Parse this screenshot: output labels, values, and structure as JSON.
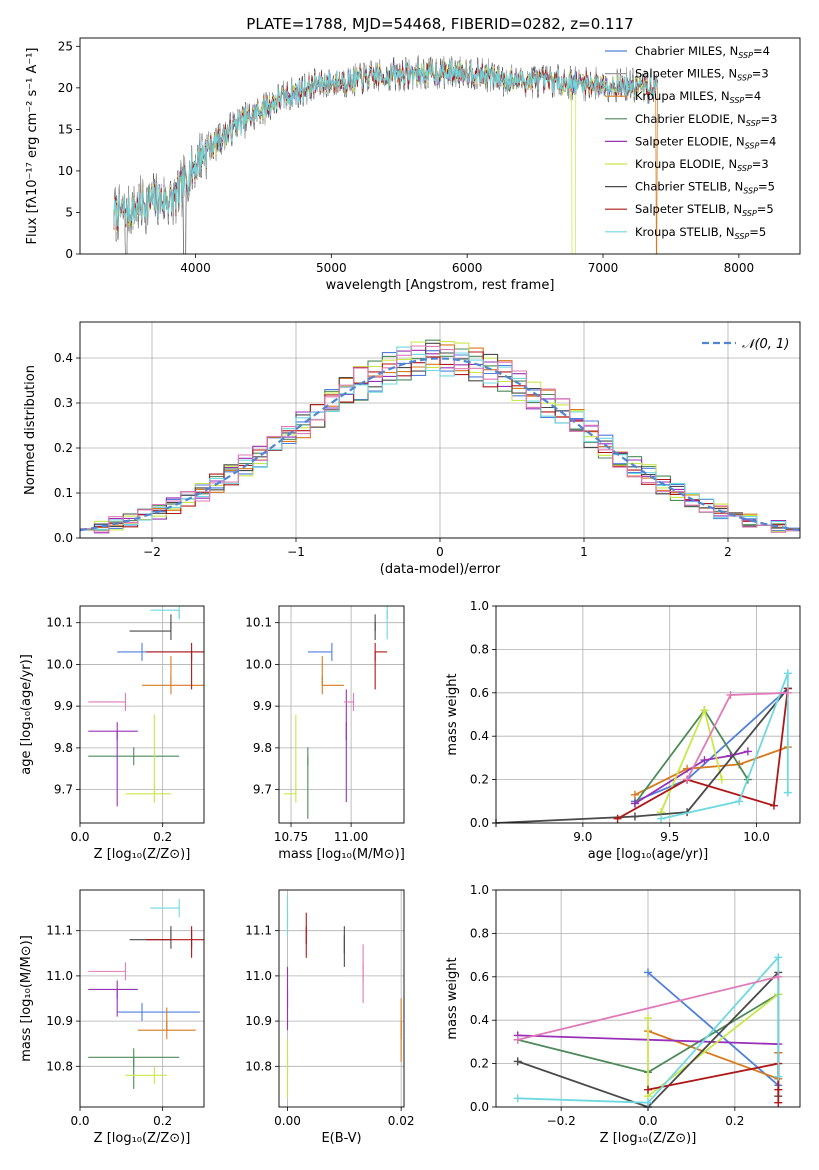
{
  "figure_title": "PLATE=1788, MJD=54468, FIBERID=0282, z=0.117",
  "colors": {
    "Chabrier MILES": "#4f7fdc",
    "Salpeter MILES": "#9a9a9a",
    "Kroupa MILES": "#d87a1e",
    "Chabrier ELODIE": "#4e8a5a",
    "Salpeter ELODIE": "#9a30b8",
    "Kroupa ELODIE": "#c8e84a",
    "Chabrier STELIB": "#4a4a4a",
    "Salpeter STELIB": "#b01818",
    "Kroupa STELIB": "#6fd8e0",
    "pink": "#e07ab8",
    "dashed_normal": "#4f86d4"
  },
  "chart_data": [
    {
      "id": "spectrum",
      "type": "line",
      "title": "PLATE=1788, MJD=54468, FIBERID=0282, z=0.117",
      "xlabel": "wavelength [Angstrom, rest frame]",
      "ylabel": "Flux [fλ10⁻¹⁷ erg cm⁻² s⁻¹ A⁻¹]",
      "xlim": [
        3150,
        8450
      ],
      "ylim": [
        0,
        26
      ],
      "xticks": [
        4000,
        5000,
        6000,
        7000,
        8000
      ],
      "yticks": [
        0,
        5,
        10,
        15,
        20,
        25
      ],
      "grid": false,
      "legend_position": "right",
      "legend": [
        {
          "label": "Chabrier MILES, N",
          "sub": "SSP",
          "n": "=4"
        },
        {
          "label": "Salpeter MILES, N",
          "sub": "SSP",
          "n": "=3"
        },
        {
          "label": "Kroupa MILES, N",
          "sub": "SSP",
          "n": "=4"
        },
        {
          "label": "Chabrier ELODIE, N",
          "sub": "SSP",
          "n": "=3"
        },
        {
          "label": "Salpeter ELODIE, N",
          "sub": "SSP",
          "n": "=4"
        },
        {
          "label": "Kroupa ELODIE, N",
          "sub": "SSP",
          "n": "=3"
        },
        {
          "label": "Chabrier STELIB, N",
          "sub": "SSP",
          "n": "=5"
        },
        {
          "label": "Salpeter STELIB, N",
          "sub": "SSP",
          "n": "=5"
        },
        {
          "label": "Kroupa STELIB, N",
          "sub": "SSP",
          "n": "=5"
        }
      ],
      "continuum": {
        "x": [
          3400,
          3500,
          3700,
          3850,
          3950,
          4050,
          4300,
          4600,
          4900,
          5200,
          5400,
          5700,
          6000,
          6300,
          6600,
          6900,
          7200,
          7400
        ],
        "y": [
          4.8,
          5.2,
          6.5,
          6.5,
          9.5,
          12.0,
          15.5,
          18.5,
          20.5,
          21.0,
          21.5,
          21.8,
          22.0,
          21.0,
          20.8,
          20.5,
          20.2,
          20.0
        ]
      },
      "series_extent": {
        "x_min": 3400,
        "x_max": 7400
      }
    },
    {
      "id": "residuals",
      "type": "step",
      "xlabel": "(data-model)/error",
      "ylabel": "Normed distribution",
      "xlim": [
        -2.5,
        2.5
      ],
      "ylim": [
        0,
        0.48
      ],
      "xticks": [
        -2,
        -1,
        0,
        1,
        2
      ],
      "yticks": [
        0.0,
        0.1,
        0.2,
        0.3,
        0.4
      ],
      "grid": true,
      "legend_position": "top-right",
      "legend_label": "𝒩(0, 1)",
      "bin_width": 0.1
    },
    {
      "id": "age_vs_Z",
      "type": "errorbar",
      "xlabel": "Z [log₁₀(Z/Z⊙)]",
      "ylabel": "age [log₁₀(age/yr)]",
      "xlim": [
        0.0,
        0.3
      ],
      "ylim": [
        9.62,
        10.14
      ],
      "xticks": [
        0.0,
        0.2
      ],
      "yticks": [
        9.7,
        9.8,
        9.9,
        10.0,
        10.1
      ],
      "points": [
        {
          "color": "Chabrier MILES",
          "x": 0.15,
          "xerr": [
            0.06,
            0.15
          ],
          "y": 10.03,
          "yerr": [
            0.0,
            0.0
          ]
        },
        {
          "color": "Kroupa MILES",
          "x": 0.22,
          "xerr": [
            0.07,
            0.08
          ],
          "y": 9.95,
          "yerr": [
            0.0,
            0.07
          ]
        },
        {
          "color": "Chabrier ELODIE",
          "x": 0.13,
          "xerr": [
            0.11,
            0.11
          ],
          "y": 9.78,
          "yerr": [
            0.0,
            0.0
          ]
        },
        {
          "color": "Salpeter ELODIE",
          "x": 0.09,
          "xerr": [
            0.07,
            0.05
          ],
          "y": 9.84,
          "yerr": [
            0.18,
            0.0
          ]
        },
        {
          "color": "Kroupa ELODIE",
          "x": 0.18,
          "xerr": [
            0.07,
            0.04
          ],
          "y": 9.69,
          "yerr": [
            0.0,
            0.19
          ]
        },
        {
          "color": "Chabrier STELIB",
          "x": 0.22,
          "xerr": [
            0.1,
            0.0
          ],
          "y": 10.08,
          "yerr": [
            0.0,
            0.04
          ]
        },
        {
          "color": "Salpeter STELIB",
          "x": 0.27,
          "xerr": [
            0.11,
            0.03
          ],
          "y": 10.03,
          "yerr": [
            0.09,
            0.0
          ]
        },
        {
          "color": "Kroupa STELIB",
          "x": 0.24,
          "xerr": [
            0.07,
            0.0
          ],
          "y": 10.13,
          "yerr": [
            0.02,
            0.0
          ]
        },
        {
          "color": "pink",
          "x": 0.11,
          "xerr": [
            0.09,
            0.0
          ],
          "y": 9.91,
          "yerr": [
            0.0,
            0.0
          ]
        }
      ]
    },
    {
      "id": "age_vs_mass",
      "type": "errorbar",
      "xlabel": "mass [log₁₀(M/M⊙)]",
      "ylabel": "",
      "xlim": [
        10.7,
        11.22
      ],
      "ylim": [
        9.62,
        10.14
      ],
      "xticks": [
        10.75,
        11.0
      ],
      "yticks": [
        9.7,
        9.8,
        9.9,
        10.0,
        10.1
      ],
      "points": [
        {
          "color": "Chabrier MILES",
          "x": 10.92,
          "xerr": [
            0.1,
            0.0
          ],
          "y": 10.03,
          "yerr": [
            0.0,
            0.0
          ]
        },
        {
          "color": "Kroupa MILES",
          "x": 10.88,
          "xerr": [
            0.0,
            0.09
          ],
          "y": 9.95,
          "yerr": [
            0.0,
            0.07
          ]
        },
        {
          "color": "Chabrier ELODIE",
          "x": 10.82,
          "xerr": [
            0.0,
            0.0
          ],
          "y": 9.78,
          "yerr": [
            0.15,
            0.0
          ]
        },
        {
          "color": "Salpeter ELODIE",
          "x": 10.98,
          "xerr": [
            0.0,
            0.0
          ],
          "y": 9.84,
          "yerr": [
            0.17,
            0.1
          ]
        },
        {
          "color": "Kroupa ELODIE",
          "x": 10.77,
          "xerr": [
            0.05,
            0.0
          ],
          "y": 9.69,
          "yerr": [
            0.0,
            0.19
          ]
        },
        {
          "color": "Chabrier STELIB",
          "x": 11.1,
          "xerr": [
            0.0,
            0.0
          ],
          "y": 10.08,
          "yerr": [
            0.0,
            0.04
          ]
        },
        {
          "color": "Salpeter STELIB",
          "x": 11.1,
          "xerr": [
            0.0,
            0.05
          ],
          "y": 10.03,
          "yerr": [
            0.09,
            0.0
          ]
        },
        {
          "color": "Kroupa STELIB",
          "x": 11.15,
          "xerr": [
            0.0,
            0.0
          ],
          "y": 10.13,
          "yerr": [
            0.07,
            0.0
          ]
        },
        {
          "color": "pink",
          "x": 11.01,
          "xerr": [
            0.04,
            0.0
          ],
          "y": 9.91,
          "yerr": [
            0.0,
            0.0
          ]
        }
      ]
    },
    {
      "id": "weight_vs_age",
      "type": "line",
      "xlabel": "age  [log₁₀(age/yr)]",
      "ylabel": "mass weight",
      "xlim": [
        8.5,
        10.25
      ],
      "ylim": [
        0.0,
        1.0
      ],
      "xticks": [
        9.0,
        9.5,
        10.0
      ],
      "yticks": [
        0.0,
        0.2,
        0.4,
        0.6,
        0.8,
        1.0
      ],
      "grid": true,
      "series": [
        {
          "color": "Chabrier MILES",
          "x": [
            9.3,
            9.6,
            10.18
          ],
          "y": [
            0.1,
            0.2,
            0.62
          ]
        },
        {
          "color": "Kroupa MILES",
          "x": [
            9.3,
            9.6,
            9.9,
            10.18
          ],
          "y": [
            0.13,
            0.25,
            0.27,
            0.35
          ]
        },
        {
          "color": "Chabrier ELODIE",
          "x": [
            9.3,
            9.7,
            9.95
          ],
          "y": [
            0.09,
            0.52,
            0.2
          ]
        },
        {
          "color": "Salpeter ELODIE",
          "x": [
            9.3,
            9.7,
            9.85,
            9.95
          ],
          "y": [
            0.09,
            0.29,
            0.31,
            0.33
          ]
        },
        {
          "color": "Kroupa ELODIE",
          "x": [
            9.45,
            9.7,
            9.8
          ],
          "y": [
            0.05,
            0.52,
            0.2
          ]
        },
        {
          "color": "Chabrier STELIB",
          "x": [
            8.5,
            9.3,
            9.6,
            10.18
          ],
          "y": [
            0.0,
            0.03,
            0.05,
            0.62
          ]
        },
        {
          "color": "Salpeter STELIB",
          "x": [
            9.2,
            9.6,
            10.1,
            10.18
          ],
          "y": [
            0.02,
            0.2,
            0.08,
            0.62
          ]
        },
        {
          "color": "Kroupa STELIB",
          "x": [
            9.45,
            9.9,
            10.18,
            10.18
          ],
          "y": [
            0.02,
            0.1,
            0.69,
            0.14
          ]
        },
        {
          "color": "pink",
          "x": [
            9.6,
            9.85,
            10.18
          ],
          "y": [
            0.2,
            0.59,
            0.6
          ]
        }
      ]
    },
    {
      "id": "mass_vs_Z",
      "type": "errorbar",
      "xlabel": "Z [log₁₀(Z/Z⊙)]",
      "ylabel": "mass [log₁₀(M/M⊙)]",
      "xlim": [
        0.0,
        0.3
      ],
      "ylim": [
        10.71,
        11.19
      ],
      "xticks": [
        0.0,
        0.2
      ],
      "yticks": [
        10.8,
        10.9,
        11.0,
        11.1
      ],
      "points": [
        {
          "color": "Chabrier MILES",
          "x": 0.15,
          "xerr": [
            0.06,
            0.14
          ],
          "y": 10.92,
          "yerr": [
            0.0,
            0.0
          ]
        },
        {
          "color": "Kroupa MILES",
          "x": 0.21,
          "xerr": [
            0.07,
            0.07
          ],
          "y": 10.88,
          "yerr": [
            0.0,
            0.05
          ]
        },
        {
          "color": "Chabrier ELODIE",
          "x": 0.13,
          "xerr": [
            0.11,
            0.11
          ],
          "y": 10.82,
          "yerr": [
            0.07,
            0.0
          ]
        },
        {
          "color": "Salpeter ELODIE",
          "x": 0.09,
          "xerr": [
            0.07,
            0.05
          ],
          "y": 10.97,
          "yerr": [
            0.06,
            0.0
          ]
        },
        {
          "color": "Kroupa ELODIE",
          "x": 0.18,
          "xerr": [
            0.07,
            0.03
          ],
          "y": 10.78,
          "yerr": [
            0.0,
            0.0
          ]
        },
        {
          "color": "Chabrier STELIB",
          "x": 0.22,
          "xerr": [
            0.1,
            0.0
          ],
          "y": 11.08,
          "yerr": [
            0.0,
            0.03
          ]
        },
        {
          "color": "Salpeter STELIB",
          "x": 0.27,
          "xerr": [
            0.11,
            0.03
          ],
          "y": 11.08,
          "yerr": [
            0.04,
            0.03
          ]
        },
        {
          "color": "Kroupa STELIB",
          "x": 0.24,
          "xerr": [
            0.07,
            0.0
          ],
          "y": 11.15,
          "yerr": [
            0.0,
            0.0
          ]
        },
        {
          "color": "pink",
          "x": 0.11,
          "xerr": [
            0.09,
            0.0
          ],
          "y": 11.01,
          "yerr": [
            0.0,
            0.0
          ]
        }
      ]
    },
    {
      "id": "mass_vs_EBV",
      "type": "errorbar",
      "xlabel": "E(B-V)",
      "ylabel": "",
      "xlim": [
        -0.0015,
        0.0205
      ],
      "ylim": [
        10.71,
        11.19
      ],
      "xticks": [
        0.0,
        0.02
      ],
      "yticks": [
        10.8,
        10.9,
        11.0,
        11.1
      ],
      "points": [
        {
          "color": "Kroupa STELIB",
          "x": 0.0,
          "xerr": [
            0.0,
            0.0
          ],
          "y": 11.13,
          "yerr": [
            0.04,
            0.05
          ]
        },
        {
          "color": "Salpeter ELODIE",
          "x": 0.0,
          "xerr": [
            0.0,
            0.0
          ],
          "y": 10.95,
          "yerr": [
            0.07,
            0.07
          ]
        },
        {
          "color": "Kroupa ELODIE",
          "x": 0.0,
          "xerr": [
            0.0,
            0.0
          ],
          "y": 10.8,
          "yerr": [
            0.07,
            0.06
          ]
        },
        {
          "color": "Salpeter STELIB",
          "x": 0.0033,
          "xerr": [
            0.0,
            0.0
          ],
          "y": 11.09,
          "yerr": [
            0.05,
            0.05
          ]
        },
        {
          "color": "Chabrier STELIB",
          "x": 0.01,
          "xerr": [
            0.0,
            0.0
          ],
          "y": 11.07,
          "yerr": [
            0.05,
            0.04
          ]
        },
        {
          "color": "pink",
          "x": 0.0133,
          "xerr": [
            0.0,
            0.0
          ],
          "y": 11.01,
          "yerr": [
            0.07,
            0.06
          ]
        },
        {
          "color": "Kroupa MILES",
          "x": 0.02,
          "xerr": [
            0.0,
            0.0
          ],
          "y": 10.88,
          "yerr": [
            0.07,
            0.07
          ]
        }
      ]
    },
    {
      "id": "weight_vs_Z",
      "type": "line",
      "xlabel": "Z [log₁₀(Z/Z⊙)]",
      "ylabel": "mass weight",
      "xlim": [
        -0.35,
        0.35
      ],
      "ylim": [
        0.0,
        1.0
      ],
      "xticks": [
        -0.2,
        0.0,
        0.2
      ],
      "yticks": [
        0.0,
        0.2,
        0.4,
        0.6,
        0.8,
        1.0
      ],
      "grid": true,
      "series": [
        {
          "color": "Chabrier MILES",
          "x": [
            0.0,
            0.3,
            0.3
          ],
          "y": [
            0.62,
            0.1,
            0.25
          ]
        },
        {
          "color": "Kroupa MILES",
          "x": [
            0.0,
            0.3,
            0.3
          ],
          "y": [
            0.35,
            0.13,
            0.25
          ]
        },
        {
          "color": "Chabrier ELODIE",
          "x": [
            -0.3,
            0.0,
            0.3
          ],
          "y": [
            0.31,
            0.16,
            0.52
          ]
        },
        {
          "color": "Salpeter ELODIE",
          "x": [
            -0.3,
            0.3
          ],
          "y": [
            0.33,
            0.29
          ]
        },
        {
          "color": "Kroupa ELODIE",
          "x": [
            0.0,
            0.0,
            0.3
          ],
          "y": [
            0.41,
            0.05,
            0.52
          ]
        },
        {
          "color": "Chabrier STELIB",
          "x": [
            -0.3,
            0.0,
            0.3,
            0.3
          ],
          "y": [
            0.21,
            0.0,
            0.62,
            0.05
          ]
        },
        {
          "color": "Salpeter STELIB",
          "x": [
            0.0,
            0.3,
            0.3,
            0.3
          ],
          "y": [
            0.08,
            0.2,
            0.02,
            0.08
          ]
        },
        {
          "color": "Kroupa STELIB",
          "x": [
            -0.3,
            0.0,
            0.3,
            0.3
          ],
          "y": [
            0.04,
            0.02,
            0.69,
            0.14
          ]
        },
        {
          "color": "pink",
          "x": [
            -0.3,
            0.3
          ],
          "y": [
            0.31,
            0.6
          ]
        }
      ]
    }
  ]
}
